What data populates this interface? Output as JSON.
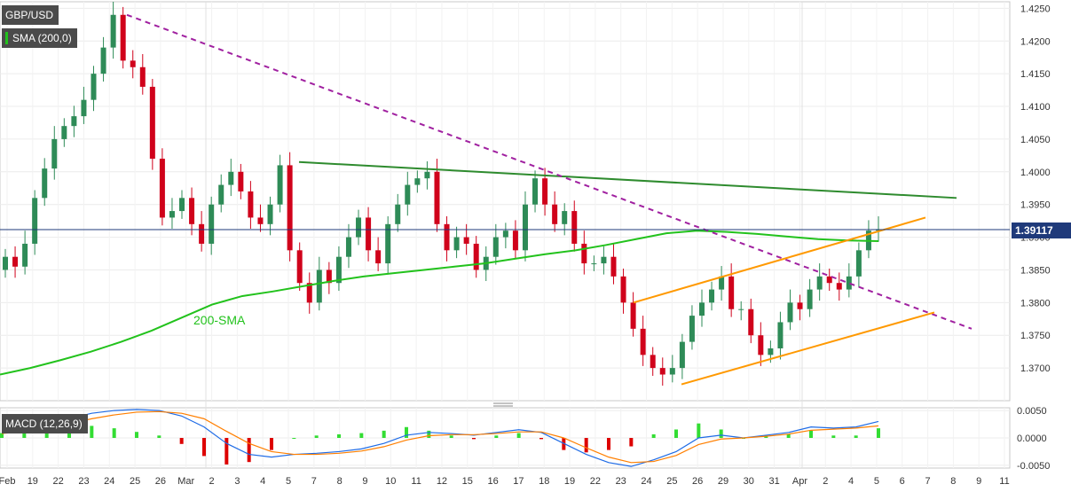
{
  "symbol_label": "GBP/USD",
  "indicator_label": "SMA (200,0)",
  "macd_label": "MACD (12,26,9)",
  "sma_annotation": "200-SMA",
  "current_price_label": "1.39117",
  "colors": {
    "up_candle": "#2e8b57",
    "down_candle": "#d0021b",
    "sma": "#22c21c",
    "resistance_line": "#2e8b2e",
    "trend_line_dashed": "#a020a0",
    "channel": "#ff9900",
    "macd_line": "#1e6be6",
    "signal_line": "#ff7f00",
    "hist_pos": "#33dd33",
    "hist_neg": "#dd0000",
    "price_line": "#1f3a7a"
  },
  "chart_data": [
    {
      "type": "candlestick",
      "title": "GBP/USD",
      "y_ticks": [
        "1.3700",
        "1.3750",
        "1.3800",
        "1.3850",
        "1.3900",
        "1.3950",
        "1.4000",
        "1.4050",
        "1.4100",
        "1.4150",
        "1.4200",
        "1.4250"
      ],
      "ylim": [
        1.365,
        1.426
      ],
      "x_tick_labels": [
        "Feb",
        "19",
        "22",
        "23",
        "24",
        "25",
        "26",
        "Mar",
        "2",
        "3",
        "4",
        "5",
        "7",
        "8",
        "9",
        "10",
        "11",
        "12",
        "15",
        "16",
        "17",
        "18",
        "19",
        "22",
        "23",
        "24",
        "25",
        "26",
        "29",
        "30",
        "31",
        "Apr",
        "2",
        "4",
        "5",
        "6",
        "7",
        "8",
        "9",
        "11"
      ],
      "current_price": 1.39117,
      "sma_200": [
        1.369,
        1.37,
        1.3712,
        1.3725,
        1.374,
        1.3757,
        1.3777,
        1.3797,
        1.381,
        1.3817,
        1.3825,
        1.3833,
        1.384,
        1.3845,
        1.385,
        1.3855,
        1.386,
        1.3867,
        1.3874,
        1.388,
        1.3888,
        1.3897,
        1.3906,
        1.391,
        1.3908,
        1.3905,
        1.3901,
        1.3897,
        1.3895,
        1.3894
      ],
      "candles_close": [
        1.387,
        1.3855,
        1.389,
        1.396,
        1.4005,
        1.405,
        1.407,
        1.4085,
        1.411,
        1.415,
        1.419,
        1.424,
        1.417,
        1.416,
        1.413,
        1.402,
        1.393,
        1.394,
        1.396,
        1.392,
        1.389,
        1.395,
        1.398,
        1.4,
        1.397,
        1.393,
        1.392,
        1.395,
        1.401,
        1.388,
        1.383,
        1.38,
        1.385,
        1.383,
        1.387,
        1.39,
        1.393,
        1.388,
        1.386,
        1.392,
        1.395,
        1.398,
        1.399,
        1.4,
        1.392,
        1.388,
        1.39,
        1.389,
        1.385,
        1.387,
        1.39,
        1.391,
        1.388,
        1.395,
        1.399,
        1.395,
        1.392,
        1.394,
        1.389,
        1.386,
        1.386,
        1.387,
        1.384,
        1.38,
        1.376,
        1.372,
        1.37,
        1.369,
        1.37,
        1.374,
        1.378,
        1.38,
        1.382,
        1.384,
        1.379,
        1.379,
        1.375,
        1.372,
        1.373,
        1.377,
        1.38,
        1.379,
        1.382,
        1.384,
        1.383,
        1.382,
        1.384,
        1.388,
        1.391,
        1.3912
      ],
      "resistance_line": {
        "from": [
          1.4015
        ],
        "to": [
          1.396
        ]
      },
      "dashed_trend_line": {
        "from": [
          1.424
        ],
        "to": [
          1.376
        ]
      },
      "rising_channel": {
        "upper": [
          1.38,
          1.393
        ],
        "lower": [
          1.3675,
          1.3785
        ]
      }
    },
    {
      "type": "macd",
      "title": "MACD (12,26,9)",
      "y_ticks": [
        "0.0050",
        "0.0000",
        "-0.0050"
      ],
      "ylim": [
        -0.0055,
        0.0055
      ],
      "macd": [
        0.0012,
        0.0018,
        0.0025,
        0.0035,
        0.0045,
        0.005,
        0.0052,
        0.005,
        0.004,
        0.002,
        -0.001,
        -0.003,
        -0.0035,
        -0.003,
        -0.0028,
        -0.0025,
        -0.002,
        -0.001,
        0.0005,
        0.001,
        0.0008,
        0.0005,
        0.001,
        0.0015,
        0.001,
        -0.001,
        -0.003,
        -0.0045,
        -0.0052,
        -0.004,
        -0.0025,
        0.0,
        0.0005,
        0.0,
        0.0005,
        0.001,
        0.002,
        0.0018,
        0.002,
        0.003
      ],
      "signal": [
        0.0008,
        0.0012,
        0.0018,
        0.0026,
        0.0035,
        0.0042,
        0.0047,
        0.0048,
        0.0045,
        0.0035,
        0.0012,
        -0.001,
        -0.0025,
        -0.003,
        -0.003,
        -0.0028,
        -0.0024,
        -0.0016,
        -0.0004,
        0.0004,
        0.0006,
        0.0006,
        0.0008,
        0.0011,
        0.0011,
        0.0,
        -0.0018,
        -0.0035,
        -0.0045,
        -0.0043,
        -0.0032,
        -0.0012,
        -0.0002,
        0.0,
        0.0003,
        0.0007,
        0.0014,
        0.0016,
        0.0018,
        0.0022
      ]
    }
  ]
}
